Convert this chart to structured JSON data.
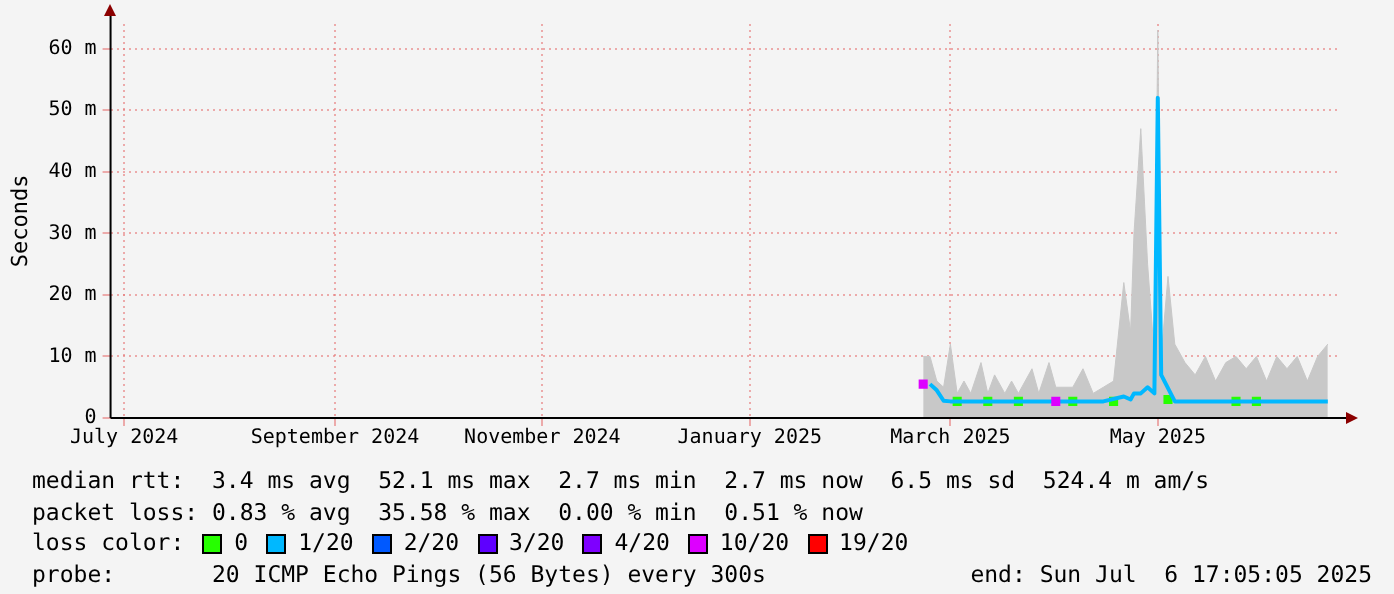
{
  "chart_data": {
    "type": "line",
    "ylabel": "Seconds",
    "legend_title": "loss color:",
    "legend": "bottom",
    "grid": true,
    "x": [
      "2025-02-21",
      "2025-02-23",
      "2025-02-25",
      "2025-02-27",
      "2025-03-01",
      "2025-03-03",
      "2025-03-05",
      "2025-03-07",
      "2025-03-10",
      "2025-03-12",
      "2025-03-14",
      "2025-03-17",
      "2025-03-19",
      "2025-03-21",
      "2025-03-25",
      "2025-03-27",
      "2025-03-30",
      "2025-04-01",
      "2025-04-06",
      "2025-04-09",
      "2025-04-12",
      "2025-04-15",
      "2025-04-18",
      "2025-04-21",
      "2025-04-23",
      "2025-04-24",
      "2025-04-26",
      "2025-04-28",
      "2025-04-30",
      "2025-05-01",
      "2025-05-02",
      "2025-05-04",
      "2025-05-06",
      "2025-05-09",
      "2025-05-12",
      "2025-05-15",
      "2025-05-18",
      "2025-05-21",
      "2025-05-24",
      "2025-05-27",
      "2025-05-30",
      "2025-06-02",
      "2025-06-05",
      "2025-06-08",
      "2025-06-11",
      "2025-06-14",
      "2025-06-17",
      "2025-06-20"
    ],
    "xlim": [
      "2024-06-27",
      "2025-06-23"
    ],
    "xticks": [
      {
        "value": "2024-07-01",
        "label": "July 2024"
      },
      {
        "value": "2024-09-01",
        "label": "September 2024"
      },
      {
        "value": "2024-11-01",
        "label": "November 2024"
      },
      {
        "value": "2025-01-01",
        "label": "January 2025"
      },
      {
        "value": "2025-03-01",
        "label": "March 2025"
      },
      {
        "value": "2025-05-01",
        "label": "May 2025"
      }
    ],
    "ylim": [
      0,
      64
    ],
    "yticks": [
      0,
      {
        "value": 10,
        "label": "10 m"
      },
      {
        "value": 20,
        "label": "20 m"
      },
      {
        "value": 30,
        "label": "30 m"
      },
      {
        "value": 40,
        "label": "40 m"
      },
      {
        "value": 50,
        "label": "50 m"
      },
      {
        "value": 60,
        "label": "60 m"
      }
    ],
    "series": [
      {
        "type": "area",
        "color": "#c8c8c8",
        "values": [
          10,
          10,
          6,
          5,
          12,
          4,
          6,
          4,
          9,
          4,
          7,
          4,
          6,
          4,
          8,
          4,
          9,
          5,
          5,
          8,
          4,
          5,
          6,
          22,
          14,
          30,
          47,
          25,
          10,
          63,
          10,
          23,
          12,
          9,
          7,
          10,
          6,
          9,
          10,
          8,
          10,
          6,
          10,
          8,
          10,
          6,
          10,
          12
        ]
      },
      {
        "type": "scatter",
        "marker": "square",
        "name": "0",
        "color": "#26ff00",
        "values": [
          null,
          null,
          null,
          null,
          null,
          2.7,
          null,
          null,
          null,
          2.7,
          null,
          null,
          null,
          2.7,
          null,
          null,
          null,
          null,
          2.7,
          null,
          null,
          null,
          2.7,
          null,
          null,
          null,
          null,
          null,
          null,
          null,
          null,
          3,
          null,
          null,
          null,
          null,
          null,
          null,
          2.7,
          null,
          2.7,
          null,
          null,
          null,
          null,
          null,
          null,
          null
        ]
      },
      {
        "name": "1/20",
        "color": "#00b8ff",
        "values": [
          null,
          5.5,
          4.5,
          2.8,
          2.7,
          null,
          2.7,
          2.7,
          2.7,
          null,
          2.7,
          2.7,
          2.7,
          null,
          2.7,
          2.7,
          2.7,
          null,
          null,
          2.7,
          2.7,
          2.7,
          null,
          3.5,
          3,
          4,
          4,
          5,
          4,
          52,
          7,
          null,
          2.7,
          2.7,
          2.7,
          2.7,
          2.7,
          2.7,
          null,
          2.7,
          null,
          2.7,
          2.7,
          2.7,
          2.7,
          2.7,
          2.7,
          2.7
        ]
      },
      {
        "type": "scatter",
        "marker": "square",
        "name": "2/20",
        "color": "#0059ff",
        "values": [
          null,
          null,
          null,
          null,
          null,
          null,
          null,
          null,
          null,
          null,
          null,
          null,
          null,
          null,
          null,
          null,
          null,
          null,
          null,
          null,
          null,
          null,
          null,
          null,
          null,
          null,
          null,
          null,
          null,
          null,
          null,
          null,
          null,
          null,
          null,
          null,
          null,
          null,
          null,
          null,
          null,
          null,
          null,
          null,
          null,
          null,
          null,
          null
        ]
      },
      {
        "type": "scatter",
        "marker": "square",
        "name": "3/20",
        "color": "#5e00ff",
        "values": [
          null,
          null,
          null,
          null,
          null,
          null,
          null,
          null,
          null,
          null,
          null,
          null,
          null,
          null,
          null,
          null,
          null,
          null,
          null,
          null,
          null,
          null,
          null,
          null,
          null,
          null,
          null,
          null,
          null,
          null,
          null,
          null,
          null,
          null,
          null,
          null,
          null,
          null,
          null,
          null,
          null,
          null,
          null,
          null,
          null,
          null,
          null,
          null
        ]
      },
      {
        "type": "scatter",
        "marker": "square",
        "name": "4/20",
        "color": "#7e00ff",
        "values": [
          null,
          null,
          null,
          null,
          null,
          null,
          null,
          null,
          null,
          null,
          null,
          null,
          null,
          null,
          null,
          null,
          null,
          null,
          null,
          null,
          null,
          null,
          null,
          null,
          null,
          null,
          null,
          null,
          null,
          null,
          null,
          null,
          null,
          null,
          null,
          null,
          null,
          null,
          null,
          null,
          null,
          null,
          null,
          null,
          null,
          null,
          null,
          null
        ]
      },
      {
        "type": "scatter",
        "marker": "square",
        "name": "10/20",
        "color": "#dd00ff",
        "values": [
          5.5,
          null,
          null,
          null,
          null,
          null,
          null,
          null,
          null,
          null,
          null,
          null,
          null,
          null,
          null,
          null,
          null,
          2.7,
          null,
          null,
          null,
          null,
          null,
          null,
          null,
          null,
          null,
          null,
          null,
          null,
          null,
          null,
          null,
          null,
          null,
          null,
          null,
          null,
          null,
          null,
          null,
          null,
          null,
          null,
          null,
          null,
          null,
          null
        ]
      },
      {
        "type": "scatter",
        "marker": "square",
        "name": "19/20",
        "color": "#ff0000",
        "values": [
          null,
          null,
          null,
          null,
          null,
          null,
          null,
          null,
          null,
          null,
          null,
          null,
          null,
          null,
          null,
          null,
          null,
          null,
          null,
          null,
          null,
          null,
          null,
          null,
          null,
          null,
          null,
          null,
          null,
          null,
          null,
          null,
          null,
          null,
          null,
          null,
          null,
          null,
          null,
          null,
          null,
          null,
          null,
          null,
          null,
          null,
          null,
          null
        ]
      }
    ],
    "annotations": [
      "median rtt:  3.4 ms avg  52.1 ms max  2.7 ms min  2.7 ms now  6.5 ms sd  524.4 m am/s",
      "packet loss: 0.83 % avg  35.58 % max  0.00 % min  0.51 % now",
      "probe:       20 ICMP Echo Pings (56 Bytes) every 300s",
      "end: Sun Jul  6 17:05:05 2025"
    ]
  }
}
